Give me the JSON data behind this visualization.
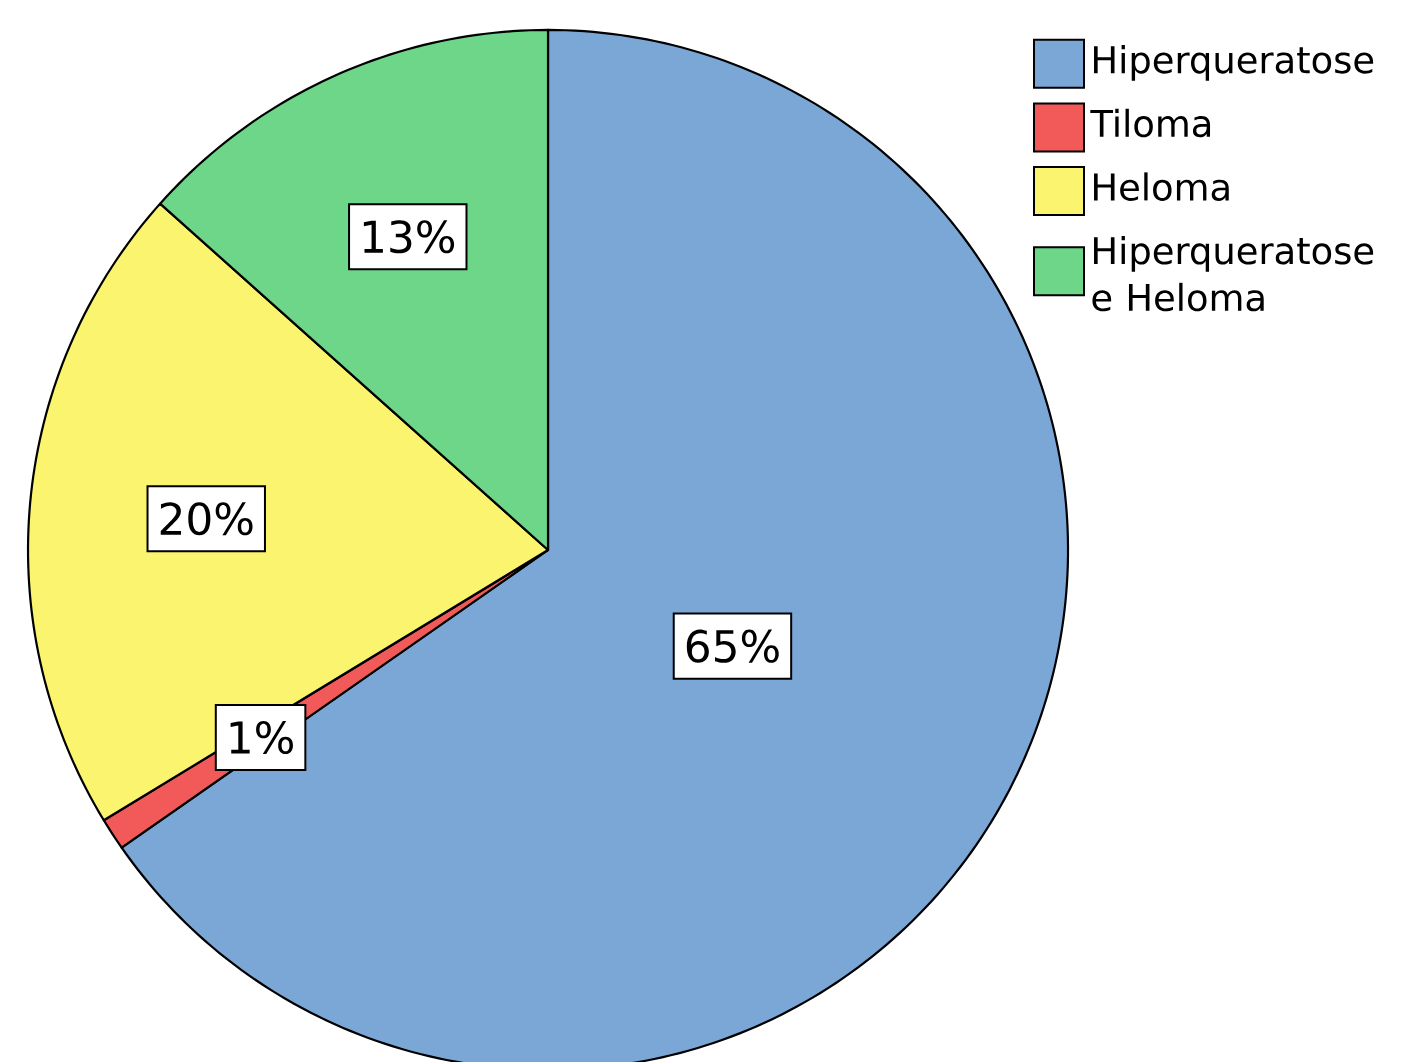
{
  "chart_data": {
    "type": "pie",
    "categories": [
      "Hiperqueratose",
      "Tiloma",
      "Heloma",
      "Hiperqueratose e Heloma"
    ],
    "values": [
      65.3,
      1.0,
      20.3,
      13.4
    ],
    "value_labels": [
      "65%",
      "1%",
      "20%",
      "13%"
    ],
    "colors": [
      "#7ba7d6",
      "#f25a5a",
      "#fbf46e",
      "#6ed688"
    ],
    "legend": "top right"
  }
}
